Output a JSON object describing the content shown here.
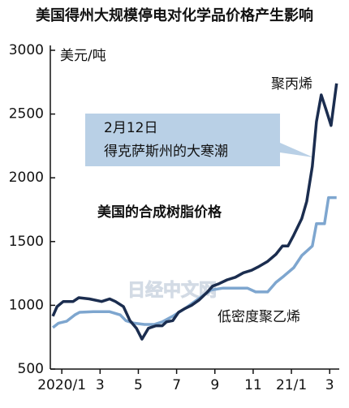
{
  "chart_data": {
    "type": "line",
    "title": "美国得州大规模停电对化学品价格产生影响",
    "y_label": "美元/吨",
    "subtitle": "美国的合成树脂价格",
    "annotation": {
      "date": "2月12日",
      "text": "得克萨斯州的大寒潮"
    },
    "watermark": "日经中文网",
    "xlim": [
      -0.6,
      14.5
    ],
    "xticks": [
      {
        "value": 0,
        "label": "2020/1"
      },
      {
        "value": 2,
        "label": "3"
      },
      {
        "value": 4,
        "label": "5"
      },
      {
        "value": 6,
        "label": "7"
      },
      {
        "value": 8,
        "label": "9"
      },
      {
        "value": 10,
        "label": "11"
      },
      {
        "value": 12,
        "label": "21/1"
      },
      {
        "value": 14,
        "label": "3"
      }
    ],
    "ylim": [
      500,
      3000
    ],
    "yticks": [
      500,
      1000,
      1500,
      2000,
      2500,
      3000
    ],
    "grid": false,
    "series": [
      {
        "name": "聚丙烯",
        "color": "#1b2d4f",
        "x": [
          -0.47,
          -0.25,
          0.08,
          0.59,
          0.89,
          1.44,
          2.08,
          2.5,
          2.8,
          3.22,
          3.56,
          3.9,
          4.19,
          4.53,
          4.92,
          5.25,
          5.47,
          5.8,
          6.1,
          6.44,
          6.78,
          7.16,
          7.58,
          7.88,
          8.22,
          8.64,
          9.07,
          9.49,
          9.92,
          10.25,
          10.76,
          11.19,
          11.53,
          11.82,
          12.12,
          12.54,
          12.8,
          13.09,
          13.31,
          13.56,
          13.81,
          14.07,
          14.36
        ],
        "values": [
          915,
          990,
          1030,
          1030,
          1060,
          1050,
          1030,
          1050,
          1030,
          990,
          880,
          820,
          735,
          820,
          840,
          840,
          870,
          880,
          945,
          975,
          1000,
          1040,
          1100,
          1150,
          1170,
          1200,
          1220,
          1255,
          1275,
          1300,
          1345,
          1400,
          1465,
          1465,
          1550,
          1680,
          1815,
          2090,
          2440,
          2650,
          2535,
          2410,
          2740
        ]
      },
      {
        "name": "低密度聚乙烯",
        "color": "#7ea6cf",
        "x": [
          -0.47,
          -0.17,
          0.25,
          0.68,
          0.93,
          1.65,
          2.5,
          3.05,
          3.35,
          3.77,
          4.32,
          4.83,
          5.25,
          5.8,
          6.44,
          6.95,
          7.37,
          7.8,
          8.43,
          9.28,
          9.7,
          10.13,
          10.76,
          11.19,
          11.61,
          12.12,
          12.54,
          13.09,
          13.31,
          13.73,
          13.94,
          14.36
        ],
        "values": [
          825,
          860,
          875,
          925,
          945,
          950,
          950,
          925,
          880,
          860,
          850,
          850,
          870,
          915,
          975,
          1030,
          1075,
          1120,
          1135,
          1135,
          1135,
          1105,
          1105,
          1180,
          1230,
          1295,
          1390,
          1465,
          1640,
          1640,
          1845,
          1845
        ]
      }
    ]
  }
}
